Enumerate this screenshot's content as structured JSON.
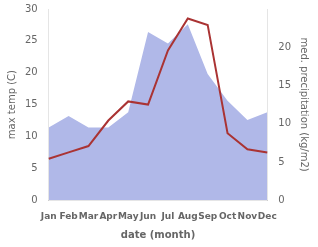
{
  "chart_data": {
    "type": "line",
    "categories": [
      "Jan",
      "Feb",
      "Mar",
      "Apr",
      "May",
      "Jun",
      "Jul",
      "Aug",
      "Sep",
      "Oct",
      "Nov",
      "Dec"
    ],
    "xlabel": "date (month)",
    "ylabel": "max temp (C)",
    "y2label": "med. precipitation (kg/m2)",
    "ylim": [
      0,
      30
    ],
    "yticks": [
      0,
      5,
      10,
      15,
      20,
      25,
      30
    ],
    "y2lim": [
      0,
      25
    ],
    "y2ticks": [
      0,
      5,
      10,
      15,
      20
    ],
    "grid": false,
    "series": [
      {
        "type": "area",
        "color": "#b0b8e8",
        "axis": "y2",
        "values": [
          9.5,
          11.0,
          9.5,
          9.5,
          11.5,
          22.0,
          20.5,
          23.0,
          16.5,
          13.0,
          10.5,
          11.5
        ]
      },
      {
        "type": "line",
        "color": "#aa3333",
        "values": [
          6.5,
          7.5,
          8.5,
          12.5,
          15.5,
          15.0,
          23.5,
          28.5,
          27.5,
          10.5,
          8.0,
          7.5
        ]
      }
    ]
  }
}
